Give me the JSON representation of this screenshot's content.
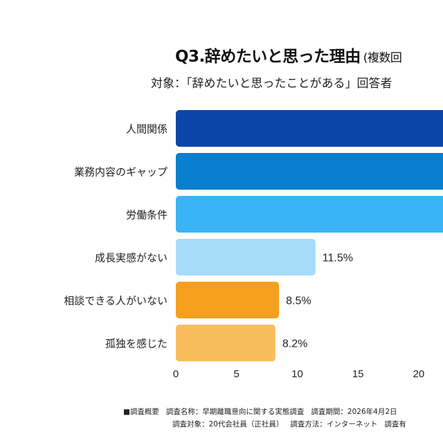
{
  "title": {
    "main": "Q3.辞めたいと思った理由",
    "note": "(複数回"
  },
  "subtitle": "対象：「辞めたいと思ったことがある」回答者",
  "chart_data": {
    "type": "bar",
    "orientation": "horizontal",
    "categories": [
      "人間関係",
      "業務内容のギャップ",
      "労働条件",
      "成長実感がない",
      "相談できる人がいない",
      "孤独を感じた"
    ],
    "values": [
      null,
      null,
      null,
      11.5,
      8.5,
      8.2
    ],
    "value_labels": [
      "",
      "",
      "",
      "11.5%",
      "8.5%",
      "8.2%"
    ],
    "bar_colors": [
      "#0b47a8",
      "#0a7fcf",
      "#3ab4f5",
      "#a6dcfa",
      "#f5a11f",
      "#f9bd5e"
    ],
    "xlim": [
      0,
      22
    ],
    "xticks": [
      0,
      5,
      10,
      15,
      20
    ],
    "xtick_labels": [
      "0",
      "5",
      "10",
      "15",
      "20"
    ],
    "grid": false,
    "legend": "none"
  },
  "footer": {
    "line1": {
      "label": "■調査概要",
      "name": "調査名称：早期離職意向に関する実態調査",
      "period": "調査期間：2026年4月2日"
    },
    "line2": {
      "target": "調査対象：20代会社員（正社員）",
      "method": "調査方法：インターネット",
      "valid": "調査有"
    }
  }
}
